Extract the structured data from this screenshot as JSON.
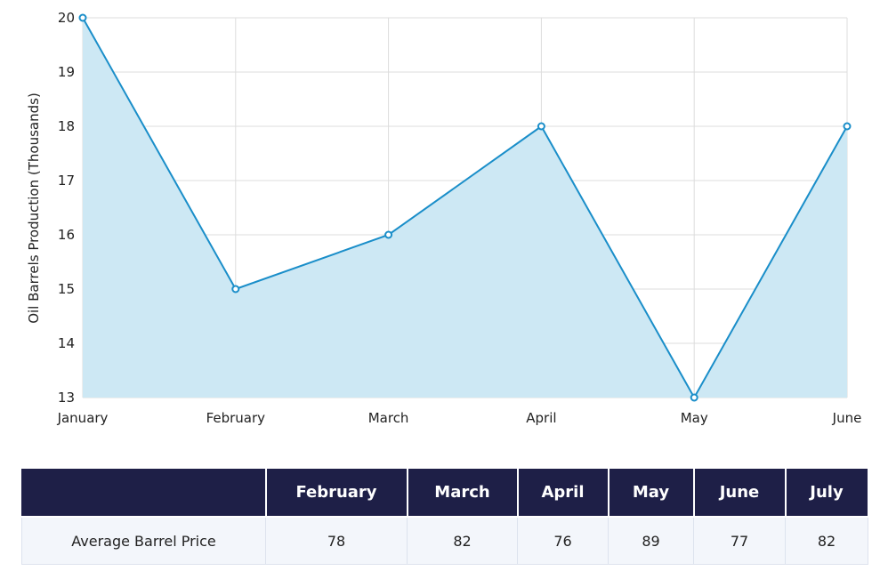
{
  "chart_data": {
    "type": "area",
    "title": "",
    "xlabel": "",
    "ylabel": "Oil Barrels Production (Thousands)",
    "categories": [
      "January",
      "February",
      "March",
      "April",
      "May",
      "June"
    ],
    "values": [
      20,
      15,
      16,
      18,
      13,
      18
    ],
    "ylim": [
      13,
      20
    ],
    "yticks": [
      13,
      14,
      15,
      16,
      17,
      18,
      19,
      20
    ],
    "grid": true,
    "colors": {
      "line": "#1a8ec9",
      "fill": "#cde8f4",
      "grid": "#dddddd"
    }
  },
  "table": {
    "corner": "",
    "headers": [
      "February",
      "March",
      "April",
      "May",
      "June",
      "July"
    ],
    "row_label": "Average Barrel Price",
    "values": [
      "78",
      "82",
      "76",
      "89",
      "77",
      "82"
    ],
    "colors": {
      "header_bg": "#1e1f47",
      "header_text": "#ffffff",
      "row_bg": "#f3f6fb"
    }
  }
}
